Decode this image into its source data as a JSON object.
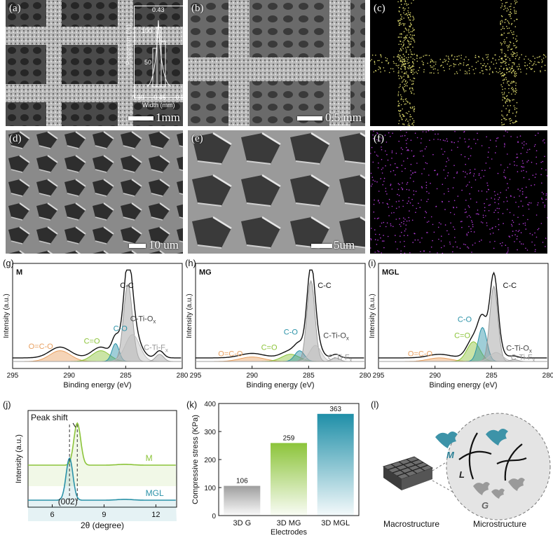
{
  "panels": {
    "a": {
      "label": "(a)",
      "scale": "1mm",
      "inset": {
        "xlabel": "Width (mm)",
        "ylabel": "Proportion (%)",
        "peak_label": "0.43",
        "xticks": [
          "0.30",
          "0.45",
          "0.60"
        ],
        "yticks": [
          "50",
          "100"
        ]
      }
    },
    "b": {
      "label": "(b)",
      "scale": "0.5 mm"
    },
    "c": {
      "label": "(c)"
    },
    "d": {
      "label": "(d)",
      "scale": "10 um"
    },
    "e": {
      "label": "(e)",
      "scale": "5um"
    },
    "f": {
      "label": "(f)"
    },
    "g": {
      "label": "(g)",
      "sample": "M"
    },
    "h": {
      "label": "(h)",
      "sample": "MG"
    },
    "i": {
      "label": "(i)",
      "sample": "MGL"
    },
    "j": {
      "label": "(j)"
    },
    "k": {
      "label": "(k)"
    },
    "l": {
      "label": "(l)",
      "macro_caption": "Macrostructure",
      "micro_caption": "Microstructure",
      "letters": {
        "m": "M",
        "l": "L",
        "g": "G"
      }
    }
  },
  "xps": {
    "xlabel": "Binding energy (eV)",
    "ylabel": "Intensity (a.u.)",
    "xticks": [
      "295",
      "290",
      "285",
      "280"
    ],
    "labels": {
      "cc": "C-C",
      "ctio": "C-Ti-O",
      "ctif": "C-Ti-F",
      "co": "C-O",
      "c_o": "C=O",
      "oco": "O=C-O",
      "sub_x": "x"
    },
    "colors": {
      "envelope": "#111111",
      "cc": "#9a9a9a",
      "ctio": "#bdbdbd",
      "ctif": "#a0a0a0",
      "co": "#2a92a8",
      "c_o": "#8cc43a",
      "oco": "#e9a060"
    }
  },
  "chart_data": [
    {
      "type": "line",
      "panel": "j",
      "xlabel": "2θ (degree)",
      "ylabel": "Intensity (a.u.)",
      "xticks": [
        "6",
        "9",
        "12"
      ],
      "xlim": [
        4.6,
        13.2
      ],
      "annotations": {
        "peak_shift": "Peak shift",
        "plane": "(002)"
      },
      "series": [
        {
          "name": "M",
          "peak": 7.45,
          "color": "#8cc43a"
        },
        {
          "name": "MGL",
          "peak": 7.0,
          "color": "#2a92a8"
        }
      ]
    },
    {
      "type": "bar",
      "panel": "k",
      "xlabel": "Electrodes",
      "ylabel": "Compressive stress (KPa)",
      "categories": [
        "3D G",
        "3D MG",
        "3D MGL"
      ],
      "values": [
        106,
        259,
        363
      ],
      "value_labels": [
        "106",
        "259",
        "363"
      ],
      "ylim": [
        0,
        400
      ],
      "yticks": [
        "0",
        "100",
        "200",
        "300",
        "400"
      ],
      "colors": [
        "#9e9e9e",
        "#8cc43a",
        "#1f8fa8"
      ]
    }
  ]
}
